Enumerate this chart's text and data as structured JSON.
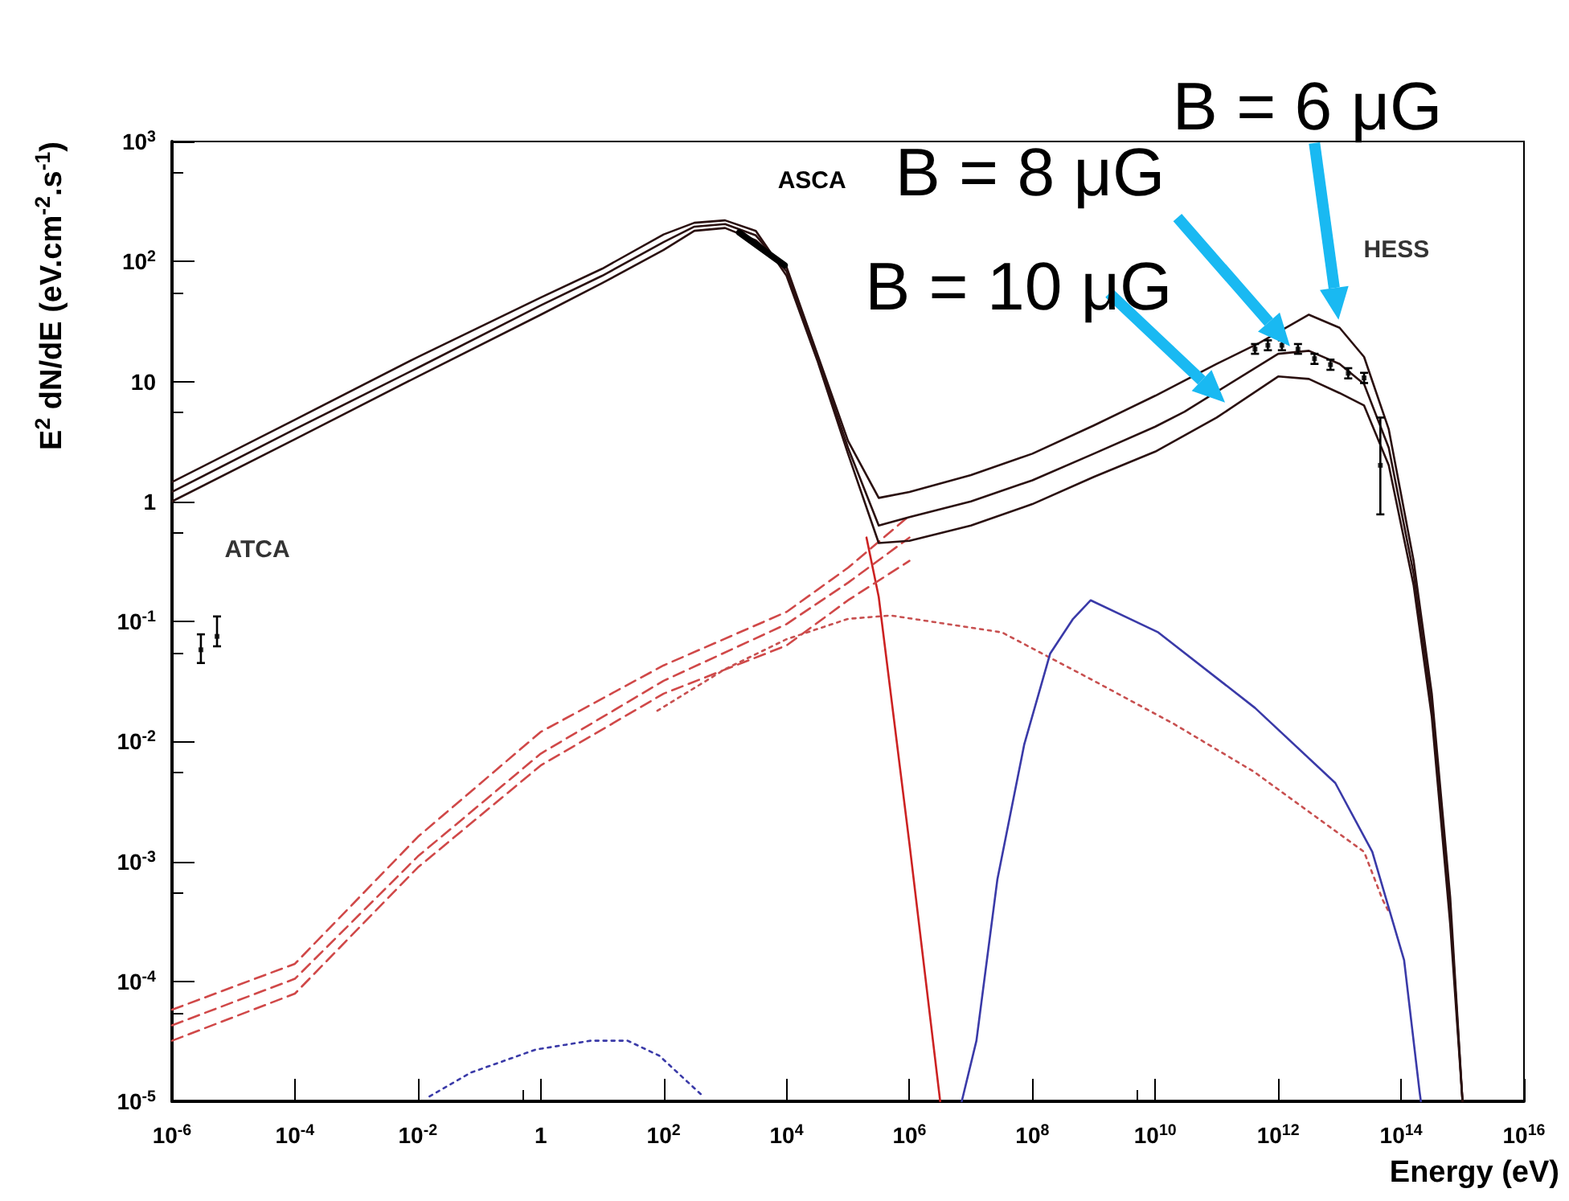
{
  "chart_data": {
    "type": "line",
    "xlabel": "Energy (eV)",
    "ylabel": "E$^{2}$ dN/dE (eV.cm$^{-2}$.s$^{-1}$)",
    "log": "xy",
    "marker": "none",
    "xlim": [
      1e-06,
      1e+16
    ],
    "ylim": [
      1e-05,
      1000
    ],
    "xticks": [
      {
        "value": 1e-06,
        "label": "10$^{-6}$"
      },
      {
        "value": 0.0001,
        "label": "10$^{-4}$"
      },
      {
        "value": 0.01,
        "label": "10$^{-2}$"
      },
      1,
      {
        "value": 100,
        "label": "10$^{2}$"
      },
      {
        "value": 10000.0,
        "label": "10$^{4}$"
      },
      {
        "value": 1000000.0,
        "label": "10$^{6}$"
      },
      {
        "value": 100000000.0,
        "label": "10$^{8}$"
      },
      {
        "value": 10000000000.0,
        "label": "10$^{10}$"
      },
      {
        "value": 1000000000000.0,
        "label": "10$^{12}$"
      },
      {
        "value": 100000000000000.0,
        "label": "10$^{14}$"
      },
      {
        "value": 1e+16,
        "label": "10$^{16}$"
      }
    ],
    "yticks": [
      {
        "value": 1e-05,
        "label": "10$^{-5}$"
      },
      {
        "value": 0.0001,
        "label": "10$^{-4}$"
      },
      {
        "value": 0.001,
        "label": "10$^{-3}$"
      },
      {
        "value": 0.01,
        "label": "10$^{-2}$"
      },
      {
        "value": 0.1,
        "label": "10$^{-1}$"
      },
      1,
      10,
      {
        "value": 100,
        "label": "10$^{2}$"
      },
      {
        "value": 1000,
        "label": "10$^{3}$"
      }
    ],
    "series": [
      {
        "color": "#cc2222",
        "x": [
          200000.0,
          316228,
          1000000.0,
          3162278
        ],
        "values": [
          0.5,
          0.16,
          0.0014,
          1e-05
        ]
      },
      {
        "color": "#d04848",
        "line_style": "dashed",
        "x": [
          1e-06,
          0.0001,
          0.01,
          1,
          100,
          10000.0,
          100000.0,
          1000000.0
        ],
        "values": [
          5.8e-05,
          0.00014,
          0.0016,
          0.012,
          0.043,
          0.12,
          0.28,
          0.76
        ]
      },
      {
        "color": "#d04848",
        "line_style": "dashed",
        "x": [
          1e-06,
          0.0001,
          0.01,
          1,
          100,
          10000.0,
          100000.0,
          1000000.0
        ],
        "values": [
          4.3e-05,
          0.000105,
          0.0011,
          0.0079,
          0.032,
          0.095,
          0.21,
          0.5
        ]
      },
      {
        "color": "#d04848",
        "line_style": "dashed",
        "x": [
          1e-06,
          0.0001,
          0.01,
          1,
          100,
          10000.0,
          100000.0,
          1000000.0
        ],
        "values": [
          3.2e-05,
          7.9e-05,
          0.00089,
          0.0063,
          0.025,
          0.063,
          0.15,
          0.32
        ]
      },
      {
        "color": "#c85050",
        "line_style": "dotted",
        "x": [
          79,
          1000,
          10000.0,
          100000.0,
          500000.0,
          32000000.0,
          1000000000.0,
          20000000000.0,
          400000000000.0,
          25000000000000.0,
          50000000000000.0,
          63000000000000.0
        ],
        "values": [
          0.018,
          0.04,
          0.071,
          0.105,
          0.112,
          0.081,
          0.032,
          0.014,
          0.0056,
          0.0012,
          0.00048,
          0.00038
        ]
      },
      {
        "color": "#3a3aa8",
        "x": [
          7100000.0,
          12300000.0,
          27000000.0,
          74000000.0,
          195000000.0,
          460000000.0,
          890000000.0,
          11200000000.0,
          420000000000.0,
          8500000000000.0,
          34000000000000.0,
          112000000000000.0,
          200000000000000.0,
          210000000000000.0
        ],
        "values": [
          1e-05,
          3.2e-05,
          0.00071,
          0.0095,
          0.054,
          0.105,
          0.15,
          0.081,
          0.019,
          0.0045,
          0.0012,
          0.00015,
          1.2e-05,
          1e-05
        ]
      },
      {
        "color": "#3a3aa8",
        "line_style": "dotted",
        "x": [
          0.0155,
          0.074,
          0.83,
          6.5,
          26,
          85,
          440
        ],
        "values": [
          1.1e-05,
          1.74e-05,
          2.7e-05,
          3.2e-05,
          3.2e-05,
          2.4e-05,
          1.1e-05
        ]
      },
      {
        "color": "#2a1010",
        "x": [
          1e-06,
          0.0001,
          0.01,
          1,
          10,
          100,
          316,
          1000,
          3162,
          10000.0,
          31623,
          100000.0,
          316228,
          1000000.0,
          10000000.0,
          100000000.0,
          1000000000.0,
          10000000000.0,
          100000000000.0,
          500000000000.0,
          3160000000000.0,
          10000000000000.0,
          25000000000000.0,
          63000000000000.0,
          160000000000000.0,
          316000000000000.0,
          630000000000000.0,
          1000000000000000.0
        ],
        "values": [
          1,
          3.3,
          11,
          36,
          66,
          125,
          180,
          190,
          150,
          90,
          17,
          3.2,
          1.07,
          1.2,
          1.66,
          2.5,
          4.3,
          7.6,
          14,
          21,
          36,
          28,
          16,
          4,
          0.32,
          0.025,
          0.0005,
          1e-05
        ]
      },
      {
        "color": "#2a1010",
        "x": [
          1e-06,
          0.0001,
          0.01,
          1,
          10,
          100,
          316,
          1000,
          3162,
          10000.0,
          31623,
          100000.0,
          316228,
          1000000.0,
          10000000.0,
          100000000.0,
          1000000000.0,
          10000000000.0,
          30000000000.0,
          1000000000000.0,
          3160000000000.0,
          10000000000000.0,
          25000000000000.0,
          63000000000000.0,
          160000000000000.0,
          316000000000000.0,
          630000000000000.0,
          1000000000000000.0
        ],
        "values": [
          1.2,
          4,
          13,
          43,
          76,
          145,
          195,
          205,
          165,
          83,
          16,
          2.8,
          0.63,
          0.74,
          1,
          1.5,
          2.5,
          4.2,
          5.6,
          17,
          18,
          14,
          9.5,
          2.8,
          0.25,
          0.02,
          0.0004,
          1e-05
        ]
      },
      {
        "color": "#2a1010",
        "x": [
          1e-06,
          0.0001,
          0.01,
          1,
          10,
          100,
          316,
          1000,
          3162,
          10000.0,
          31623,
          100000.0,
          316228,
          1000000.0,
          10000000.0,
          100000000.0,
          1000000000.0,
          10000000000.0,
          100000000000.0,
          1000000000000.0,
          3160000000000.0,
          10000000000000.0,
          25000000000000.0,
          63000000000000.0,
          160000000000000.0,
          316000000000000.0,
          630000000000000.0,
          1000000000000000.0
        ],
        "values": [
          1.45,
          4.8,
          16,
          50,
          87,
          168,
          210,
          220,
          180,
          76,
          15,
          2.5,
          0.45,
          0.47,
          0.63,
          0.95,
          1.6,
          2.6,
          5,
          11,
          10.5,
          8,
          6.3,
          2,
          0.2,
          0.016,
          0.0003,
          1e-05
        ]
      },
      {
        "name": "ATCA",
        "type": "scatter",
        "color": "#000000",
        "marker": "square",
        "x": [
          2.95e-06,
          5.4e-06
        ],
        "values": [
          0.058,
          0.075
        ],
        "errors": [
          [
            0.045,
            0.078
          ],
          [
            0.062,
            0.11
          ]
        ]
      },
      {
        "name": "ASCA",
        "color": "#000000",
        "x": [
          1700,
          9300
        ],
        "values": [
          174,
          93
        ]
      },
      {
        "name": "HESS",
        "type": "scatter",
        "color": "#000000",
        "marker": "square",
        "x": [
          420000000000.0,
          680000000000.0,
          1150000000000.0,
          2100000000000.0,
          3900000000000.0,
          7100000000000.0,
          13800000000000.0,
          25000000000000.0,
          46000000000000.0
        ],
        "values": [
          18.6,
          20,
          20,
          18.6,
          15.5,
          13.8,
          11.7,
          10.7,
          2
        ],
        "errors": [
          [
            17,
            20.5
          ],
          [
            18.2,
            22
          ],
          [
            18.2,
            22
          ],
          [
            17,
            20.5
          ],
          [
            14,
            17
          ],
          [
            12.5,
            15.2
          ],
          [
            10.6,
            12.9
          ],
          [
            9.7,
            11.8
          ],
          [
            0.78,
            5
          ]
        ]
      }
    ],
    "annotations": [
      {
        "text": "B = 6 μG",
        "x": 10000000000000.0,
        "y": 28
      },
      {
        "text": "B = 8 μG",
        "x": 1900000000000.0,
        "y": 17.5
      },
      {
        "text": "B = 10 μG",
        "x": 170000000000.0,
        "y": 6
      }
    ]
  }
}
